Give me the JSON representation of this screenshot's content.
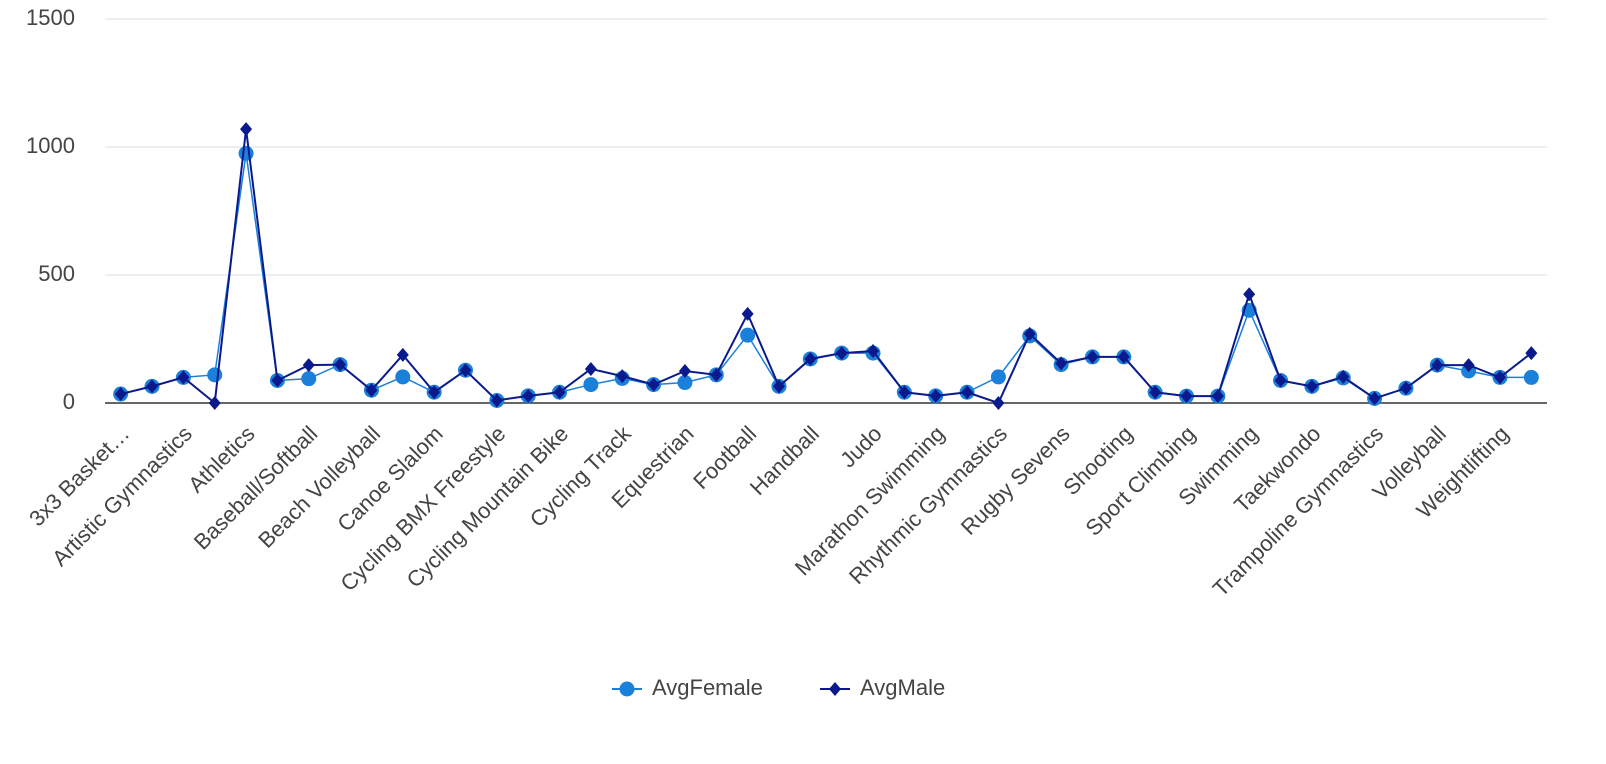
{
  "chart_data": {
    "type": "line",
    "categories": [
      "3x3 Basket…",
      null,
      "Artistic Gymnastics",
      null,
      "Athletics",
      null,
      "Baseball/Softball",
      null,
      "Beach Volleyball",
      null,
      "Canoe Slalom",
      null,
      "Cycling BMX Freestyle",
      null,
      "Cycling Mountain Bike",
      null,
      "Cycling Track",
      null,
      "Equestrian",
      null,
      "Football",
      null,
      "Handball",
      null,
      "Judo",
      null,
      "Marathon Swimming",
      null,
      "Rhythmic Gymnastics",
      null,
      "Rugby Sevens",
      null,
      "Shooting",
      null,
      "Sport Climbing",
      null,
      "Swimming",
      null,
      "Taekwondo",
      null,
      "Trampoline Gymnastics",
      null,
      "Volleyball",
      null,
      "Weightlifting",
      null
    ],
    "series": [
      {
        "name": "AvgFemale",
        "color": "#1a80d9",
        "values": [
          35,
          65,
          100,
          110,
          975,
          88,
          95,
          150,
          50,
          102,
          42,
          128,
          10,
          28,
          42,
          72,
          96,
          72,
          80,
          110,
          265,
          65,
          172,
          195,
          195,
          42,
          28,
          42,
          102,
          262,
          150,
          180,
          180,
          42,
          27,
          27,
          362,
          88,
          65,
          98,
          18,
          58,
          148,
          125,
          100,
          100
        ]
      },
      {
        "name": "AvgMale",
        "color": "#0a1a8c",
        "values": [
          35,
          65,
          100,
          0,
          1070,
          88,
          148,
          150,
          50,
          188,
          42,
          128,
          10,
          28,
          42,
          133,
          105,
          72,
          125,
          110,
          348,
          65,
          172,
          195,
          203,
          42,
          28,
          42,
          0,
          270,
          155,
          180,
          180,
          42,
          27,
          27,
          425,
          88,
          65,
          102,
          18,
          58,
          148,
          148,
          100,
          195
        ]
      }
    ],
    "ylim": [
      0,
      1500
    ],
    "yticks": [
      0,
      500,
      1000,
      1500
    ],
    "grid": true,
    "legend": "bottom"
  }
}
